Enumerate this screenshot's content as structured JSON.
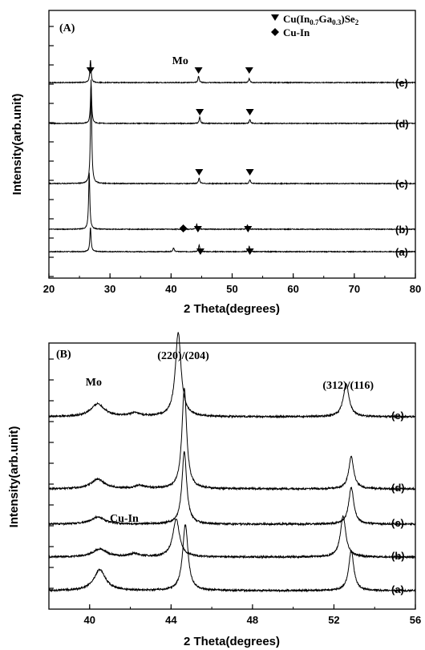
{
  "chart_data": [
    {
      "panel_label": "(A)",
      "type": "line",
      "xlabel": "2 Theta(degrees)",
      "ylabel": "Intensity(arb.unit)",
      "xlim": [
        20,
        80
      ],
      "xticks": [
        "20",
        "30",
        "40",
        "50",
        "60",
        "70",
        "80"
      ],
      "legend": {
        "placement": "top-right",
        "entries": [
          {
            "marker": "down-triangle",
            "text_main": "Cu(In",
            "sub1": "0.7",
            "text_mid": "Ga",
            "sub2": "0.3",
            "text_end": ")Se",
            "sub3": "2"
          },
          {
            "marker": "diamond",
            "text": "Cu-In"
          }
        ]
      },
      "annotations": [
        {
          "text": "Mo",
          "x": 41.5
        }
      ],
      "series": [
        {
          "label": "(a)",
          "peaks": [
            {
              "x": 26.8,
              "h": 30
            },
            {
              "x": 40.4,
              "h": 5
            },
            {
              "x": 44.6,
              "h": 8
            },
            {
              "x": 52.8,
              "h": 7
            }
          ],
          "markers": [
            {
              "type": "down-triangle",
              "x": 44.8
            },
            {
              "type": "down-triangle",
              "x": 52.9
            }
          ]
        },
        {
          "label": "(b)",
          "peaks": [
            {
              "x": 26.6,
              "h": 70
            },
            {
              "x": 44.2,
              "h": 6
            },
            {
              "x": 52.5,
              "h": 5
            }
          ],
          "markers": [
            {
              "type": "diamond",
              "x": 42.0
            },
            {
              "type": "down-triangle",
              "x": 44.4
            },
            {
              "type": "down-triangle",
              "x": 52.6
            }
          ]
        },
        {
          "label": "(c)",
          "peaks": [
            {
              "x": 26.9,
              "h": 130
            },
            {
              "x": 44.6,
              "h": 7
            },
            {
              "x": 52.9,
              "h": 5
            }
          ],
          "markers": [
            {
              "type": "down-triangle",
              "x": 44.6
            },
            {
              "type": "down-triangle",
              "x": 52.9
            }
          ]
        },
        {
          "label": "(d)",
          "peaks": [
            {
              "x": 26.9,
              "h": 48
            },
            {
              "x": 44.7,
              "h": 8
            },
            {
              "x": 52.9,
              "h": 5
            }
          ],
          "markers": [
            {
              "type": "down-triangle",
              "x": 44.7
            },
            {
              "type": "down-triangle",
              "x": 52.9
            }
          ]
        },
        {
          "label": "(e)",
          "peaks": [
            {
              "x": 26.8,
              "h": 28
            },
            {
              "x": 44.5,
              "h": 8
            },
            {
              "x": 52.8,
              "h": 5
            }
          ],
          "markers": [
            {
              "type": "down-triangle",
              "x": 26.8
            },
            {
              "type": "down-triangle",
              "x": 44.5
            },
            {
              "type": "down-triangle",
              "x": 52.8
            }
          ]
        }
      ]
    },
    {
      "panel_label": "(B)",
      "type": "line",
      "xlabel": "2 Theta(degrees)",
      "ylabel": "Intensity(arb.unit)",
      "xlim": [
        38,
        56
      ],
      "xticks": [
        "40",
        "44",
        "48",
        "52",
        "56"
      ],
      "annotations": [
        {
          "text": "(220)/(204)",
          "x": 44.6
        },
        {
          "text": "(312)/(116)",
          "x": 52.7
        },
        {
          "text": "Mo",
          "x": 40.2
        },
        {
          "text": "Cu-In",
          "x": 41.7
        }
      ],
      "series": [
        {
          "label": "(a)",
          "peaks": [
            {
              "x": 40.5,
              "h": 26,
              "w": 0.35
            },
            {
              "x": 44.7,
              "h": 82,
              "w": 0.16
            },
            {
              "x": 52.85,
              "h": 50,
              "w": 0.15
            }
          ]
        },
        {
          "label": "(b)",
          "peaks": [
            {
              "x": 40.5,
              "h": 10,
              "w": 0.4
            },
            {
              "x": 42.2,
              "h": 4,
              "w": 0.3
            },
            {
              "x": 44.25,
              "h": 47,
              "w": 0.2
            },
            {
              "x": 52.45,
              "h": 51,
              "w": 0.16
            }
          ]
        },
        {
          "label": "(c)",
          "peaks": [
            {
              "x": 40.4,
              "h": 9,
              "w": 0.4
            },
            {
              "x": 44.65,
              "h": 90,
              "w": 0.14
            },
            {
              "x": 52.85,
              "h": 46,
              "w": 0.15
            }
          ]
        },
        {
          "label": "(d)",
          "peaks": [
            {
              "x": 40.4,
              "h": 12,
              "w": 0.4
            },
            {
              "x": 42.5,
              "h": 4,
              "w": 0.3
            },
            {
              "x": 44.65,
              "h": 125,
              "w": 0.14
            },
            {
              "x": 52.85,
              "h": 40,
              "w": 0.15
            }
          ]
        },
        {
          "label": "(e)",
          "peaks": [
            {
              "x": 40.4,
              "h": 16,
              "w": 0.4
            },
            {
              "x": 42.2,
              "h": 4,
              "w": 0.3
            },
            {
              "x": 44.35,
              "h": 105,
              "w": 0.17
            },
            {
              "x": 52.6,
              "h": 41,
              "w": 0.17
            }
          ]
        }
      ]
    }
  ]
}
